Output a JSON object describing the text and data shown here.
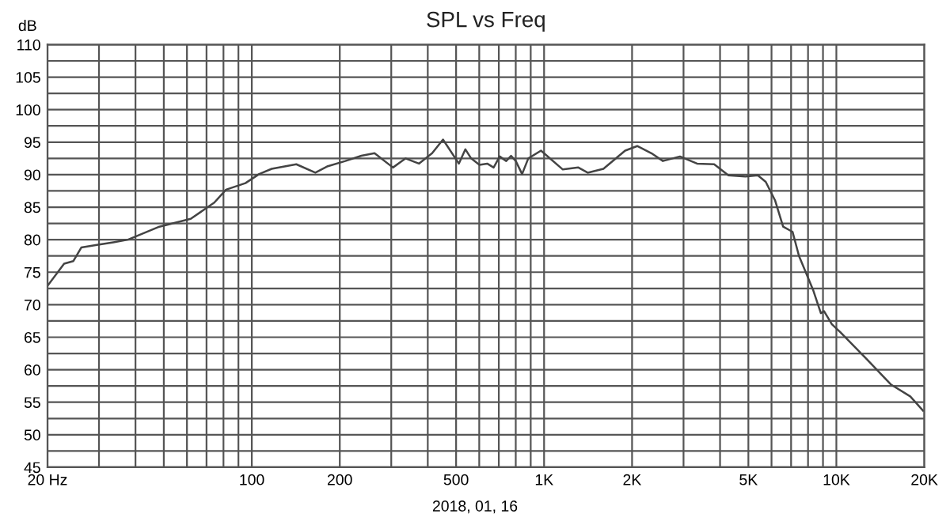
{
  "chart_data": {
    "type": "line",
    "title": "SPL vs Freq",
    "ylabel": "dB",
    "annotations": [
      "2018, 01, 16"
    ],
    "log": "x",
    "grid": true,
    "marker": "none",
    "line_style": "solid",
    "xlim": [
      20,
      20000
    ],
    "ylim": [
      45,
      110
    ],
    "xticks": [
      {
        "value": 20,
        "label": "20 Hz"
      },
      {
        "value": 30,
        "label": null
      },
      {
        "value": 40,
        "label": null
      },
      {
        "value": 50,
        "label": null
      },
      {
        "value": 60,
        "label": null
      },
      {
        "value": 70,
        "label": null
      },
      {
        "value": 80,
        "label": null
      },
      {
        "value": 90,
        "label": null
      },
      100,
      200,
      {
        "value": 300,
        "label": null
      },
      {
        "value": 400,
        "label": null
      },
      500,
      {
        "value": 600,
        "label": null
      },
      {
        "value": 700,
        "label": null
      },
      {
        "value": 800,
        "label": null
      },
      {
        "value": 900,
        "label": null
      },
      {
        "value": 1000,
        "label": "1K"
      },
      {
        "value": 2000,
        "label": "2K"
      },
      {
        "value": 3000,
        "label": null
      },
      {
        "value": 4000,
        "label": null
      },
      {
        "value": 5000,
        "label": "5K"
      },
      {
        "value": 6000,
        "label": null
      },
      {
        "value": 7000,
        "label": null
      },
      {
        "value": 8000,
        "label": null
      },
      {
        "value": 9000,
        "label": null
      },
      {
        "value": 10000,
        "label": "10K"
      },
      {
        "value": 20000,
        "label": "20K"
      }
    ],
    "yticks": [
      45,
      {
        "value": 47.5,
        "label": null
      },
      50,
      {
        "value": 52.5,
        "label": null
      },
      55,
      {
        "value": 57.5,
        "label": null
      },
      60,
      {
        "value": 62.5,
        "label": null
      },
      65,
      {
        "value": 67.5,
        "label": null
      },
      70,
      {
        "value": 72.5,
        "label": null
      },
      75,
      {
        "value": 77.5,
        "label": null
      },
      80,
      {
        "value": 82.5,
        "label": null
      },
      85,
      {
        "value": 87.5,
        "label": null
      },
      90,
      {
        "value": 92.5,
        "label": null
      },
      95,
      {
        "value": 97.5,
        "label": null
      },
      100,
      {
        "value": 102.5,
        "label": null
      },
      105,
      {
        "value": 107.5,
        "label": null
      },
      110
    ],
    "series": [
      {
        "color": "#444444",
        "x": [
          20,
          22.8,
          24.5,
          26.1,
          29.5,
          33.6,
          37.7,
          48.3,
          61.8,
          74.4,
          81.6,
          95.1,
          106,
          117,
          142,
          165,
          182,
          209,
          237,
          263,
          304,
          336,
          373,
          414,
          451,
          511,
          538,
          563,
          601,
          639,
          672,
          705,
          742,
          771,
          800,
          841,
          883,
          976,
          1159,
          1310,
          1410,
          1596,
          1894,
          2083,
          2329,
          2550,
          2917,
          3337,
          3819,
          4271,
          4887,
          5387,
          5733,
          6175,
          6574,
          7083,
          7450,
          8320,
          8851,
          9077,
          9655,
          10300,
          12600,
          15400,
          17900,
          19800
        ],
        "values": [
          72.9,
          76.3,
          76.7,
          78.8,
          79.2,
          79.6,
          80,
          82,
          83.2,
          85.7,
          87.7,
          88.7,
          90.1,
          90.9,
          91.6,
          90.3,
          91.3,
          92.1,
          92.9,
          93.3,
          91.1,
          92.5,
          91.7,
          93.3,
          95.4,
          91.7,
          93.9,
          92.5,
          91.5,
          91.7,
          91.1,
          92.8,
          92.1,
          92.9,
          92.1,
          90.1,
          92.5,
          93.7,
          90.8,
          91.1,
          90.3,
          90.9,
          93.7,
          94.4,
          93.3,
          92.1,
          92.8,
          91.7,
          91.6,
          89.9,
          89.7,
          89.9,
          88.9,
          86,
          82,
          81.2,
          77.5,
          72.3,
          68.7,
          69,
          67,
          65.8,
          61.8,
          57.7,
          55.9,
          53.7
        ]
      }
    ]
  }
}
